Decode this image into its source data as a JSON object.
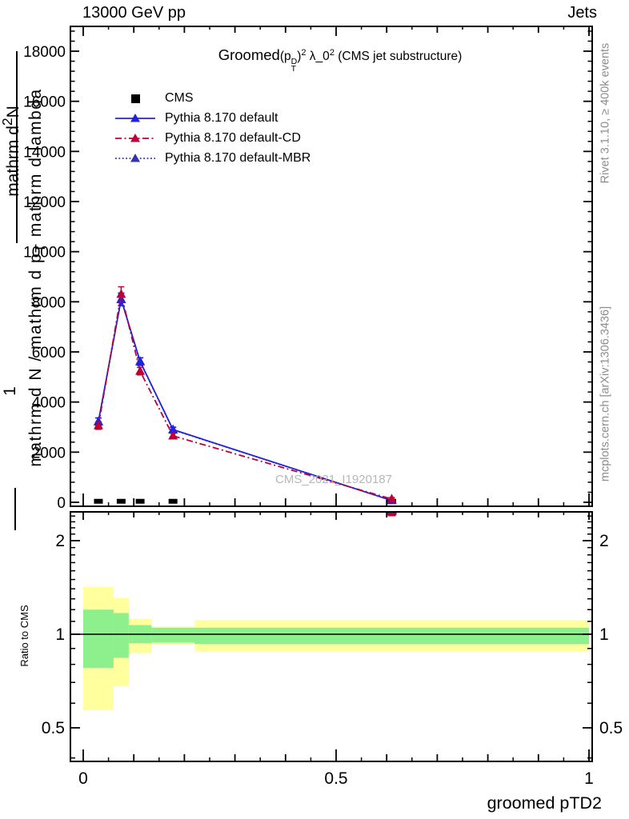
{
  "header": {
    "left": "13000 GeV pp",
    "right": "Jets"
  },
  "title": {
    "groomed": "Groomed",
    "p_open": "(p",
    "p_sup": "D",
    "p_sub": "T",
    "p_close": ")",
    "exp1": "2",
    "lambda": " λ_0",
    "exp2": "2",
    "suffix": " (CMS jet substructure)"
  },
  "ylabel": {
    "d2n_pre": "mathrm d",
    "d2n_sup": "2",
    "d2n_post": "N",
    "one": "1",
    "den_pre": "mathrm d N / mathrm d p",
    "den_sub": "T",
    "den_post": " mathrm d lambda"
  },
  "ratio_label": "Ratio to CMS",
  "side_notes": {
    "rivet": "Rivet 3.1.10, ≥ 400k events",
    "mcplots": "mcplots.cern.ch [arXiv:1306.3436]"
  },
  "watermark": "CMS_2021_I1920187",
  "chart_data": {
    "type": "line",
    "title": "Groomed(p_T^D)^2 λ_0^2 (CMS jet substructure)",
    "xlabel": "groomed pTD2",
    "ylabel": "1/N d^2N / d p_T d lambda (mangled: mathrm d2N / mathrm dp_T mathrm dlambda)",
    "ratio_ylabel": "Ratio to CMS",
    "xlim": [
      -0.025,
      1.007
    ],
    "ylim": [
      0,
      19000
    ],
    "ratio_ylim": [
      0.4,
      2.48
    ],
    "ratio_scale": "log",
    "grid": false,
    "legend_position": "top-left",
    "colors": {
      "blue": "#2222dd",
      "crimson": "#bd0038",
      "indigo": "#3434b0",
      "band_yellow": "#ffff9e",
      "band_green": "#8df08d",
      "gray_text": "#8c8c8c",
      "watermark": "#b7b7b7"
    },
    "x_ticks": [
      {
        "v": 0,
        "label": "0"
      },
      {
        "v": 0.5,
        "label": "0.5"
      },
      {
        "v": 1,
        "label": "1"
      }
    ],
    "main_yticks": [
      {
        "v": 0,
        "label": "0"
      },
      {
        "v": 2000,
        "label": "2000"
      },
      {
        "v": 4000,
        "label": "4000"
      },
      {
        "v": 6000,
        "label": "6000"
      },
      {
        "v": 8000,
        "label": "8000"
      },
      {
        "v": 10000,
        "label": "10000"
      },
      {
        "v": 12000,
        "label": "12000"
      },
      {
        "v": 14000,
        "label": "14000"
      },
      {
        "v": 16000,
        "label": "16000"
      },
      {
        "v": 18000,
        "label": "18000"
      }
    ],
    "ratio_yticks": [
      {
        "v": 2,
        "label": "2"
      },
      {
        "v": 1,
        "label": "1"
      },
      {
        "v": 0.5,
        "label": "0.5"
      }
    ],
    "bin_edges": [
      0,
      0.06,
      0.09,
      0.135,
      0.22,
      1.0
    ],
    "bin_centers": [
      0.03,
      0.075,
      0.1125,
      0.1775,
      0.61
    ],
    "series": [
      {
        "name": "CMS",
        "style": "square",
        "marker": "square",
        "color": "#000000",
        "z": 1,
        "values": [
          40,
          40,
          40,
          40,
          40
        ]
      },
      {
        "name": "Pythia 8.170 default",
        "style": "solid",
        "marker": "triangle",
        "color": "#2222dd",
        "z": 3,
        "values": [
          3220,
          8100,
          5620,
          2900,
          70
        ],
        "errors": [
          150,
          250,
          150,
          100,
          50
        ]
      },
      {
        "name": "Pythia 8.170 default-CD",
        "style": "dashdot",
        "marker": "triangle",
        "color": "#bd0038",
        "z": 4,
        "values": [
          3060,
          8300,
          5230,
          2650,
          130
        ],
        "errors": [
          150,
          300,
          150,
          100,
          60
        ]
      },
      {
        "name": "Pythia 8.170 default-MBR",
        "style": "dotted",
        "marker": "triangle",
        "color": "#3434b0",
        "z": 2,
        "values": [
          3210,
          8090,
          5610,
          2890,
          70
        ],
        "errors": [
          150,
          250,
          150,
          100,
          50
        ]
      }
    ],
    "ratio_reference": 1,
    "ratio_offscale_marker": {
      "x": 0.61
    },
    "ratio_bands": [
      {
        "x0": 0.0,
        "x1": 0.06,
        "yellow": [
          0.57,
          1.42
        ],
        "green": [
          0.78,
          1.2
        ]
      },
      {
        "x0": 0.06,
        "x1": 0.09,
        "yellow": [
          0.68,
          1.31
        ],
        "green": [
          0.84,
          1.17
        ]
      },
      {
        "x0": 0.09,
        "x1": 0.135,
        "yellow": [
          0.87,
          1.12
        ],
        "green": [
          0.935,
          1.07
        ]
      },
      {
        "x0": 0.135,
        "x1": 0.22,
        "yellow": [
          0.93,
          1.06
        ],
        "green": [
          0.94,
          1.05
        ]
      },
      {
        "x0": 0.22,
        "x1": 1.0,
        "yellow": [
          0.88,
          1.11
        ],
        "green": [
          0.93,
          1.05
        ]
      }
    ]
  }
}
